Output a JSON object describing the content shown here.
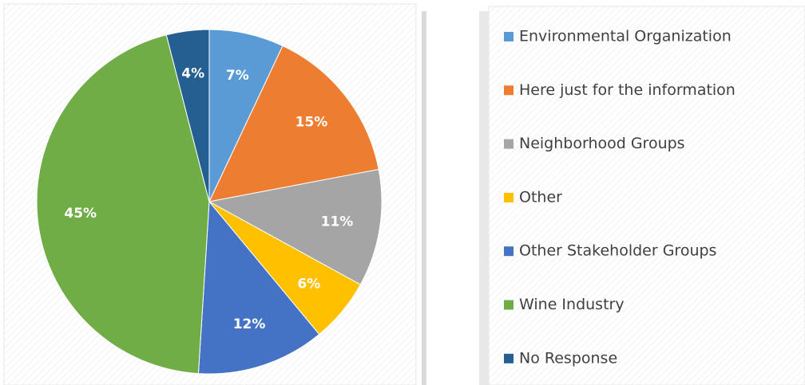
{
  "chart_data": {
    "type": "pie",
    "categories": [
      "Environmental Organization",
      "Here just for the information",
      "Neighborhood Groups",
      "Other",
      "Other Stakeholder Groups",
      "Wine Industry",
      "No Response"
    ],
    "values": [
      7,
      15,
      11,
      6,
      12,
      45,
      4
    ],
    "value_labels": [
      "7%",
      "15%",
      "11%",
      "6%",
      "12%",
      "45%",
      "4%"
    ],
    "colors": [
      "#5b9bd5",
      "#ed7d31",
      "#a5a5a5",
      "#ffc000",
      "#4472c4",
      "#70ad47",
      "#255e91"
    ]
  }
}
